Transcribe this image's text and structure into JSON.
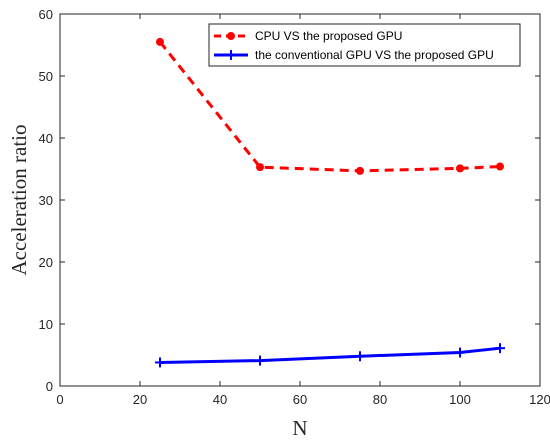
{
  "chart_data": {
    "type": "line",
    "title": "",
    "xlabel": "N",
    "ylabel": "Acceleration ratio",
    "xlim": [
      0,
      120
    ],
    "ylim": [
      0,
      60
    ],
    "xticks": [
      "0",
      "20",
      "40",
      "60",
      "80",
      "100",
      "120"
    ],
    "yticks": [
      "0",
      "10",
      "20",
      "30",
      "40",
      "50",
      "60"
    ],
    "grid": false,
    "legend_position": "top-right",
    "x": [
      25,
      50,
      75,
      100,
      110
    ],
    "series": [
      {
        "name": "CPU VS the proposed GPU",
        "color": "#ff0000",
        "line_style": "dashed",
        "marker": "circle",
        "values": [
          55.5,
          35.3,
          34.7,
          35.1,
          35.4
        ]
      },
      {
        "name": "the conventional GPU VS the proposed GPU",
        "color": "#0000ff",
        "line_style": "solid",
        "marker": "plus",
        "values": [
          3.8,
          4.1,
          4.8,
          5.4,
          6.1
        ]
      }
    ]
  }
}
